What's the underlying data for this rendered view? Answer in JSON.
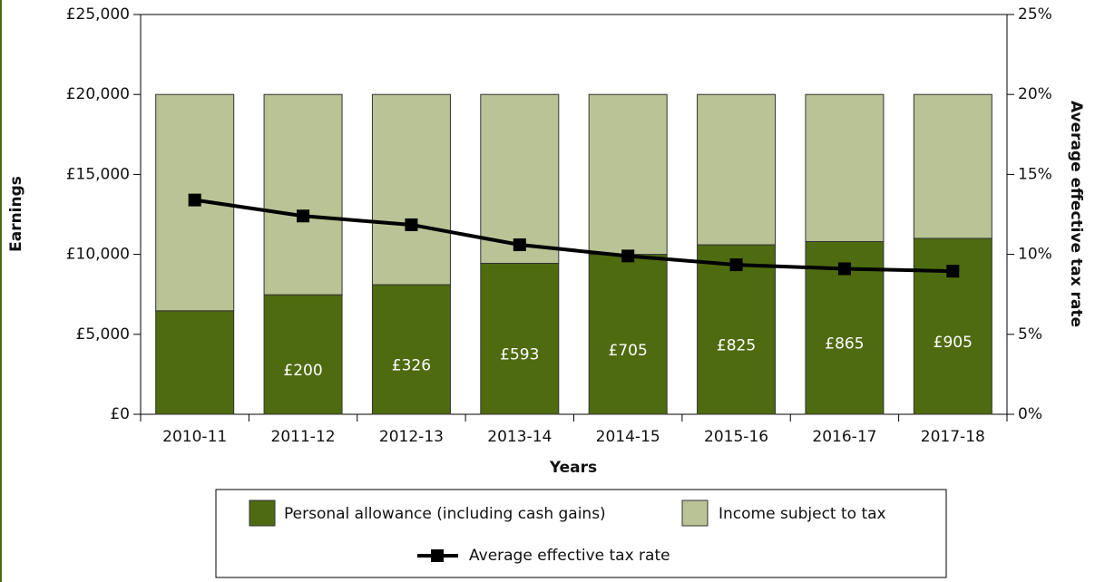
{
  "chart_data": {
    "type": "bar",
    "stacked": true,
    "categories": [
      "2010-11",
      "2011-12",
      "2012-13",
      "2013-14",
      "2014-15",
      "2015-16",
      "2016-17",
      "2017-18"
    ],
    "series": [
      {
        "name": "Personal allowance (including cash gains)",
        "color": "#4e6b10",
        "values": [
          6475,
          7475,
          8105,
          9440,
          10000,
          10600,
          10800,
          11000
        ],
        "labels": [
          null,
          "£200",
          "£326",
          "£593",
          "£705",
          "£825",
          "£865",
          "£905"
        ]
      },
      {
        "name": "Income subject to tax",
        "color": "#b9c395",
        "values": [
          13525,
          12525,
          11895,
          10560,
          10000,
          9400,
          9200,
          9000
        ]
      },
      {
        "name": "Average effective tax rate",
        "type": "line",
        "axis": "y2",
        "color": "#000000",
        "values": [
          13.4,
          12.4,
          11.85,
          10.6,
          9.9,
          9.35,
          9.1,
          8.95
        ]
      }
    ],
    "xlabel": "Years",
    "ylabel": "Earnings",
    "y2label": "Average effective tax rate",
    "ylim": [
      0,
      25000
    ],
    "yticks": [
      {
        "value": 0,
        "label": "£0"
      },
      {
        "value": 5000,
        "label": "£5,000"
      },
      {
        "value": 10000,
        "label": "£10,000"
      },
      {
        "value": 15000,
        "label": "£15,000"
      },
      {
        "value": 20000,
        "label": "£20,000"
      },
      {
        "value": 25000,
        "label": "£25,000"
      }
    ],
    "y2lim": [
      0,
      25
    ],
    "y2ticks": [
      {
        "value": 0,
        "label": "0%"
      },
      {
        "value": 5,
        "label": "5%"
      },
      {
        "value": 10,
        "label": "10%"
      },
      {
        "value": 15,
        "label": "15%"
      },
      {
        "value": 20,
        "label": "20%"
      },
      {
        "value": 25,
        "label": "25%"
      }
    ],
    "grid": false,
    "legend": "bottom"
  }
}
